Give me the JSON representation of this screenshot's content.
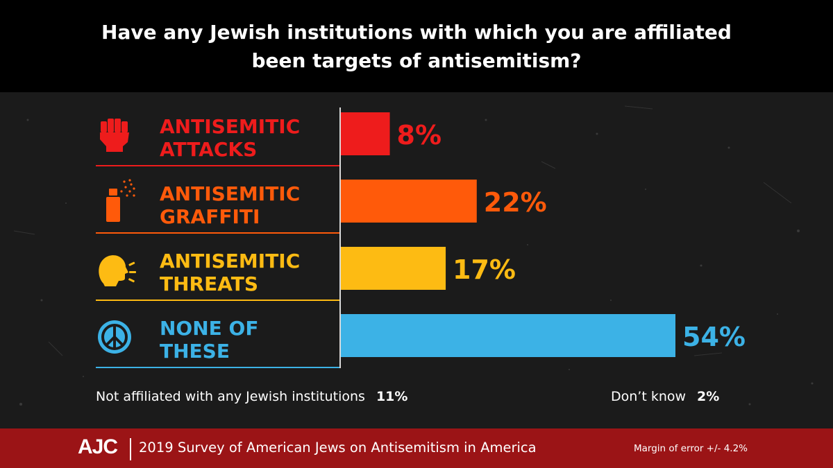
{
  "title": "Have any Jewish institutions with which you are affiliated been targets of antisemitism?",
  "chart_data": {
    "type": "bar",
    "orientation": "horizontal",
    "title": "Have any Jewish institutions with which you are affiliated been targets of antisemitism?",
    "categories": [
      {
        "line1": "ANTISEMITIC",
        "line2": "ATTACKS",
        "icon": "raised-fist-icon",
        "color": "#ee1c1c",
        "value": 8,
        "value_label": "8%"
      },
      {
        "line1": "ANTISEMITIC",
        "line2": "GRAFFITI",
        "icon": "spray-can-icon",
        "color": "#ff5a0a",
        "value": 22,
        "value_label": "22%"
      },
      {
        "line1": "ANTISEMITIC",
        "line2": "THREATS",
        "icon": "shouting-head-icon",
        "color": "#fdbb13",
        "value": 17,
        "value_label": "17%"
      },
      {
        "line1": "NONE OF",
        "line2": "THESE",
        "icon": "peace-sign-icon",
        "color": "#3cb2e6",
        "value": 54,
        "value_label": "54%"
      }
    ],
    "xlim": [
      0,
      54
    ],
    "unit": "%",
    "grid": false,
    "legend": "none"
  },
  "notes": {
    "not_affiliated_label": "Not affiliated with any Jewish institutions",
    "not_affiliated_value": "11%",
    "dont_know_label": "Don’t know",
    "dont_know_value": "2%"
  },
  "footer": {
    "logo": "AJC",
    "survey": "2019 Survey of American Jews on Antisemitism in America",
    "margin_of_error": "Margin of error +/- 4.2%"
  },
  "colors": {
    "header_bg": "#000000",
    "background": "#1b1b1b",
    "footer_bg": "#9b1416"
  }
}
